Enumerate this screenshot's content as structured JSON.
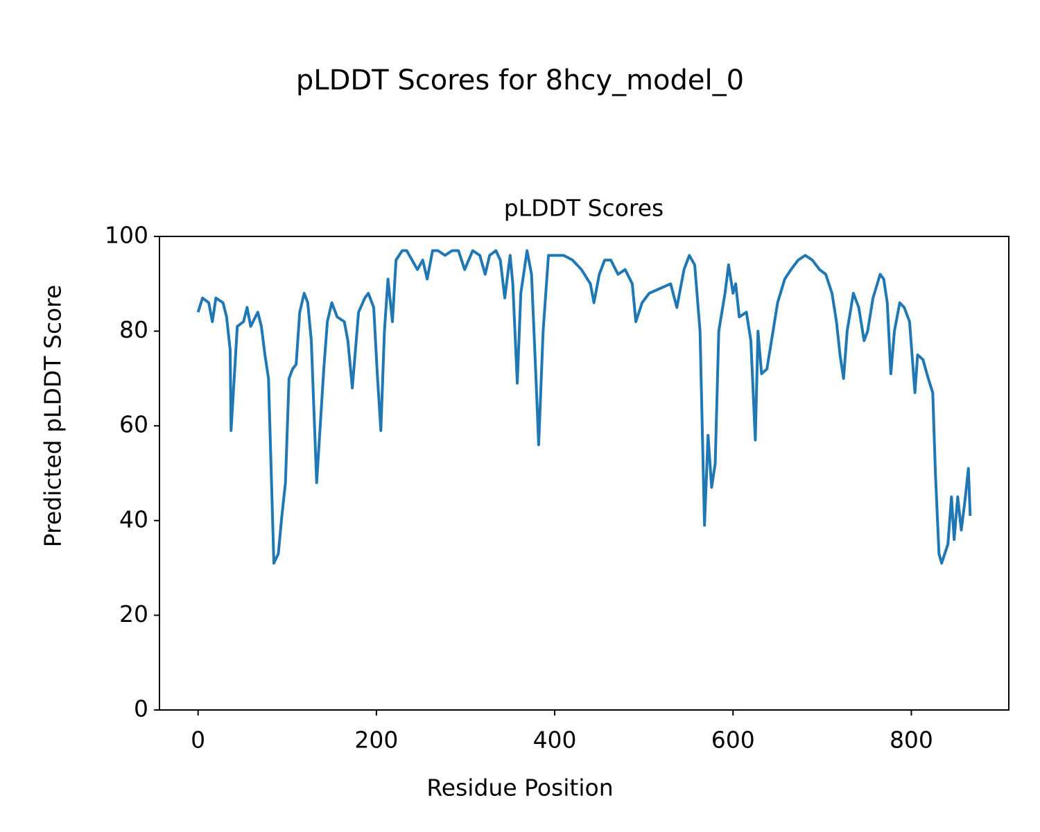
{
  "chart_data": {
    "type": "line",
    "suptitle": "pLDDT Scores for 8hcy_model_0",
    "title": "pLDDT Scores",
    "xlabel": "Residue Position",
    "ylabel": "Predicted pLDDT Score",
    "xlim": [
      -43.3,
      909.3
    ],
    "xticks": [
      0,
      200,
      400,
      600,
      800
    ],
    "ylim": [
      0,
      100
    ],
    "yticks": [
      0,
      20,
      40,
      60,
      80,
      100
    ],
    "grid": false,
    "series": [
      {
        "name": "pLDDT",
        "color": "#1f77b4",
        "x": [
          0,
          5,
          12,
          16,
          20,
          28,
          32,
          36,
          37,
          44,
          51,
          55,
          59,
          67,
          71,
          75,
          79,
          81,
          85,
          90,
          94,
          98,
          102,
          106,
          110,
          114,
          119,
          123,
          127,
          133,
          137,
          141,
          145,
          150,
          156,
          164,
          168,
          173,
          180,
          187,
          191,
          197,
          201,
          205,
          209,
          213,
          218,
          222,
          229,
          234,
          240,
          246,
          252,
          257,
          263,
          269,
          277,
          285,
          292,
          299,
          308,
          316,
          322,
          327,
          334,
          339,
          344,
          350,
          353,
          358,
          362,
          369,
          374,
          379,
          382,
          387,
          393,
          401,
          410,
          420,
          430,
          440,
          444,
          450,
          456,
          463,
          471,
          479,
          487,
          491,
          498,
          506,
          518,
          530,
          537,
          545,
          551,
          557,
          563,
          568,
          572,
          576,
          580,
          584,
          591,
          595,
          600,
          603,
          607,
          615,
          620,
          625,
          628,
          632,
          638,
          644,
          650,
          658,
          665,
          673,
          681,
          689,
          697,
          704,
          711,
          716,
          720,
          724,
          728,
          735,
          741,
          747,
          751,
          757,
          765,
          769,
          773,
          777,
          781,
          787,
          792,
          798,
          804,
          807,
          813,
          819,
          824,
          827,
          831,
          834,
          841,
          845,
          848,
          852,
          856,
          860,
          864,
          866
        ],
        "values": [
          84,
          87,
          86,
          82,
          87,
          86,
          83,
          76,
          59,
          81,
          82,
          85,
          81,
          84,
          81,
          75,
          70,
          57,
          31,
          33,
          41,
          48,
          70,
          72,
          73,
          84,
          88,
          86,
          78,
          48,
          60,
          72,
          82,
          86,
          83,
          82,
          78,
          68,
          84,
          87,
          88,
          85,
          71,
          59,
          80,
          91,
          82,
          95,
          97,
          97,
          95,
          93,
          95,
          91,
          97,
          97,
          96,
          97,
          97,
          93,
          97,
          96,
          92,
          96,
          97,
          95,
          87,
          96,
          90,
          69,
          88,
          97,
          92,
          70,
          56,
          80,
          96,
          96,
          96,
          95,
          93,
          90,
          86,
          92,
          95,
          95,
          92,
          93,
          90,
          82,
          86,
          88,
          89,
          90,
          85,
          93,
          96,
          94,
          80,
          39,
          58,
          47,
          52,
          80,
          88,
          94,
          88,
          90,
          83,
          84,
          78,
          57,
          80,
          71,
          72,
          79,
          86,
          91,
          93,
          95,
          96,
          95,
          93,
          92,
          88,
          82,
          75,
          70,
          80,
          88,
          85,
          78,
          80,
          87,
          92,
          91,
          86,
          71,
          80,
          86,
          85,
          82,
          67,
          75,
          74,
          70,
          67,
          50,
          33,
          31,
          35,
          45,
          36,
          45,
          38,
          44,
          51,
          41
        ]
      }
    ]
  }
}
